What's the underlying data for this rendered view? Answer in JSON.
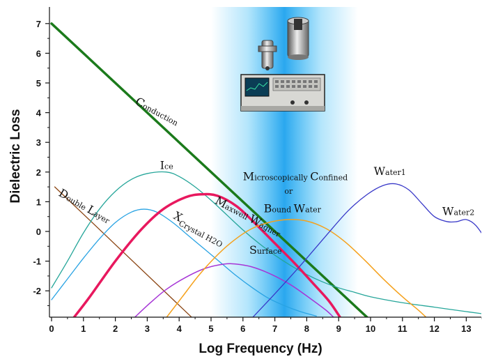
{
  "chart_data": {
    "type": "line",
    "xlabel": "Log Frequency (Hz)",
    "ylabel": "Dielectric Loss",
    "xlim": [
      0,
      13.7
    ],
    "ylim": [
      -2.9,
      7.5
    ],
    "xticks": [
      "0",
      "1",
      "2",
      "3",
      "4",
      "5",
      "6",
      "7",
      "8",
      "9",
      "10",
      "11",
      "12",
      "13"
    ],
    "yticks": [
      "7",
      "6",
      "5",
      "4",
      "3",
      "2",
      "1",
      "0",
      "-1",
      "-2"
    ],
    "highlight_band": {
      "x_range": [
        5.0,
        9.6
      ],
      "color": "#29b6f6"
    },
    "series": [
      {
        "key": "conduction",
        "color": "#1b7a1b",
        "width": 3.5,
        "points": [
          [
            0,
            7
          ],
          [
            10,
            -3
          ]
        ]
      },
      {
        "key": "double_layer",
        "color": "#8b4513",
        "width": 1.3,
        "points": [
          [
            0.1,
            1.5
          ],
          [
            4.5,
            -3
          ]
        ]
      },
      {
        "key": "ice",
        "color": "#26a69a",
        "width": 1.3,
        "points": [
          [
            0,
            -1.9
          ],
          [
            0.5,
            -1.0
          ],
          [
            1,
            -0.05
          ],
          [
            1.5,
            0.75
          ],
          [
            2,
            1.35
          ],
          [
            2.5,
            1.75
          ],
          [
            3,
            1.95
          ],
          [
            3.6,
            2.0
          ],
          [
            4,
            1.85
          ],
          [
            4.5,
            1.5
          ],
          [
            5,
            1.05
          ],
          [
            5.5,
            0.55
          ],
          [
            6,
            0.05
          ],
          [
            6.5,
            -0.4
          ],
          [
            7,
            -0.8
          ],
          [
            7.5,
            -1.15
          ],
          [
            8,
            -1.45
          ],
          [
            8.5,
            -1.7
          ],
          [
            9,
            -1.9
          ],
          [
            9.5,
            -2.05
          ],
          [
            10,
            -2.2
          ],
          [
            11,
            -2.4
          ],
          [
            12,
            -2.55
          ],
          [
            13,
            -2.7
          ],
          [
            13.7,
            -2.8
          ]
        ]
      },
      {
        "key": "crystal_h2o",
        "color": "#29a3e3",
        "width": 1.3,
        "points": [
          [
            0,
            -2.3
          ],
          [
            0.5,
            -1.6
          ],
          [
            1,
            -0.9
          ],
          [
            1.5,
            -0.25
          ],
          [
            2,
            0.3
          ],
          [
            2.5,
            0.65
          ],
          [
            2.9,
            0.75
          ],
          [
            3.3,
            0.65
          ],
          [
            3.8,
            0.3
          ],
          [
            4.3,
            -0.15
          ],
          [
            4.8,
            -0.6
          ],
          [
            5.3,
            -1.05
          ],
          [
            5.8,
            -1.5
          ],
          [
            6.3,
            -1.9
          ],
          [
            6.8,
            -2.25
          ],
          [
            7.3,
            -2.5
          ],
          [
            7.8,
            -2.7
          ],
          [
            8.3,
            -2.85
          ]
        ]
      },
      {
        "key": "maxwell_wagner",
        "color": "#e8185e",
        "width": 3.5,
        "points": [
          [
            0.7,
            -2.9
          ],
          [
            1.2,
            -2.2
          ],
          [
            2,
            -1.0
          ],
          [
            2.8,
            0.05
          ],
          [
            3.5,
            0.75
          ],
          [
            4.2,
            1.15
          ],
          [
            4.7,
            1.25
          ],
          [
            5.2,
            1.2
          ],
          [
            5.8,
            0.85
          ],
          [
            6.4,
            0.25
          ],
          [
            7,
            -0.4
          ],
          [
            7.6,
            -1.05
          ],
          [
            8.2,
            -1.75
          ],
          [
            8.7,
            -2.35
          ],
          [
            9.05,
            -2.9
          ]
        ]
      },
      {
        "key": "surface",
        "color": "#a635d6",
        "width": 1.5,
        "points": [
          [
            2.6,
            -2.9
          ],
          [
            3.1,
            -2.4
          ],
          [
            3.6,
            -1.95
          ],
          [
            4.2,
            -1.55
          ],
          [
            4.8,
            -1.25
          ],
          [
            5.4,
            -1.1
          ],
          [
            5.8,
            -1.1
          ],
          [
            6.3,
            -1.2
          ],
          [
            6.9,
            -1.45
          ],
          [
            7.5,
            -1.8
          ],
          [
            8.1,
            -2.25
          ],
          [
            8.6,
            -2.65
          ],
          [
            8.85,
            -2.9
          ]
        ]
      },
      {
        "key": "bound_water",
        "color": "#f5a11c",
        "width": 1.5,
        "points": [
          [
            3.6,
            -2.9
          ],
          [
            4.1,
            -2.2
          ],
          [
            4.6,
            -1.5
          ],
          [
            5.1,
            -0.9
          ],
          [
            5.6,
            -0.4
          ],
          [
            6.2,
            0.05
          ],
          [
            6.8,
            0.3
          ],
          [
            7.4,
            0.4
          ],
          [
            8,
            0.35
          ],
          [
            8.6,
            0.1
          ],
          [
            9.2,
            -0.35
          ],
          [
            9.8,
            -0.95
          ],
          [
            10.4,
            -1.6
          ],
          [
            11,
            -2.2
          ],
          [
            11.5,
            -2.65
          ],
          [
            11.75,
            -2.9
          ]
        ]
      },
      {
        "key": "water",
        "color": "#3838c8",
        "width": 1.3,
        "points": [
          [
            6.3,
            -2.9
          ],
          [
            7,
            -2.1
          ],
          [
            7.8,
            -1.15
          ],
          [
            8.6,
            -0.15
          ],
          [
            9.3,
            0.7
          ],
          [
            9.9,
            1.25
          ],
          [
            10.4,
            1.55
          ],
          [
            10.8,
            1.6
          ],
          [
            11.2,
            1.4
          ],
          [
            11.6,
            0.95
          ],
          [
            12,
            0.5
          ],
          [
            12.4,
            0.33
          ],
          [
            12.7,
            0.33
          ],
          [
            13,
            0.4
          ],
          [
            13.3,
            0.2
          ],
          [
            13.7,
            -0.4
          ]
        ]
      }
    ],
    "annotations": [
      {
        "key": "conduction",
        "big": "C",
        "small": "onduction",
        "x": 2.6,
        "y": 4.3,
        "rotate": 28,
        "sub": false
      },
      {
        "key": "double_layer",
        "big": "D",
        "small": "ouble ",
        "big2": "L",
        "small2": "ayer",
        "x": 0.2,
        "y": 1.22,
        "rotate": 30,
        "sub": false
      },
      {
        "key": "ice",
        "big": "I",
        "small": "ce",
        "x": 3.4,
        "y": 2.1,
        "rotate": 0,
        "sub": false
      },
      {
        "key": "maxwell_wagner",
        "big": "M",
        "small": "axwell ",
        "big2": "W",
        "small2": "agner",
        "x": 5.1,
        "y": 0.96,
        "rotate": 28,
        "sub": false
      },
      {
        "key": "crystal",
        "big": "X",
        "small": "Crystal H2O",
        "x": 3.8,
        "y": 0.45,
        "rotate": 28,
        "sub": true
      },
      {
        "key": "surface",
        "big": "S",
        "small": "urface",
        "x": 6.2,
        "y": -0.75,
        "rotate": 0,
        "sub": false
      },
      {
        "key": "microscopically",
        "big": "M",
        "small": "icroscopically ",
        "big2": "C",
        "small2": "onfined",
        "x": 6.0,
        "y": 1.72,
        "rotate": 0,
        "sub": false
      },
      {
        "key": "or",
        "big": "",
        "small": "or",
        "x": 7.3,
        "y": 1.27,
        "rotate": 0,
        "sub": false
      },
      {
        "key": "bound_water",
        "big": "B",
        "small": "ound ",
        "big2": "W",
        "small2": "ater",
        "x": 6.65,
        "y": 0.65,
        "rotate": 0,
        "sub": false
      },
      {
        "key": "water1",
        "big": "W",
        "small": "ater1",
        "x": 10.1,
        "y": 1.9,
        "rotate": 0,
        "sub": false
      },
      {
        "key": "water2",
        "big": "W",
        "small": "ater2",
        "x": 12.25,
        "y": 0.55,
        "rotate": 0,
        "sub": false
      }
    ],
    "grid": false,
    "legend": "none"
  },
  "icons": [
    "sample-holder-icon",
    "coaxial-probe-icon",
    "network-analyzer-icon"
  ]
}
